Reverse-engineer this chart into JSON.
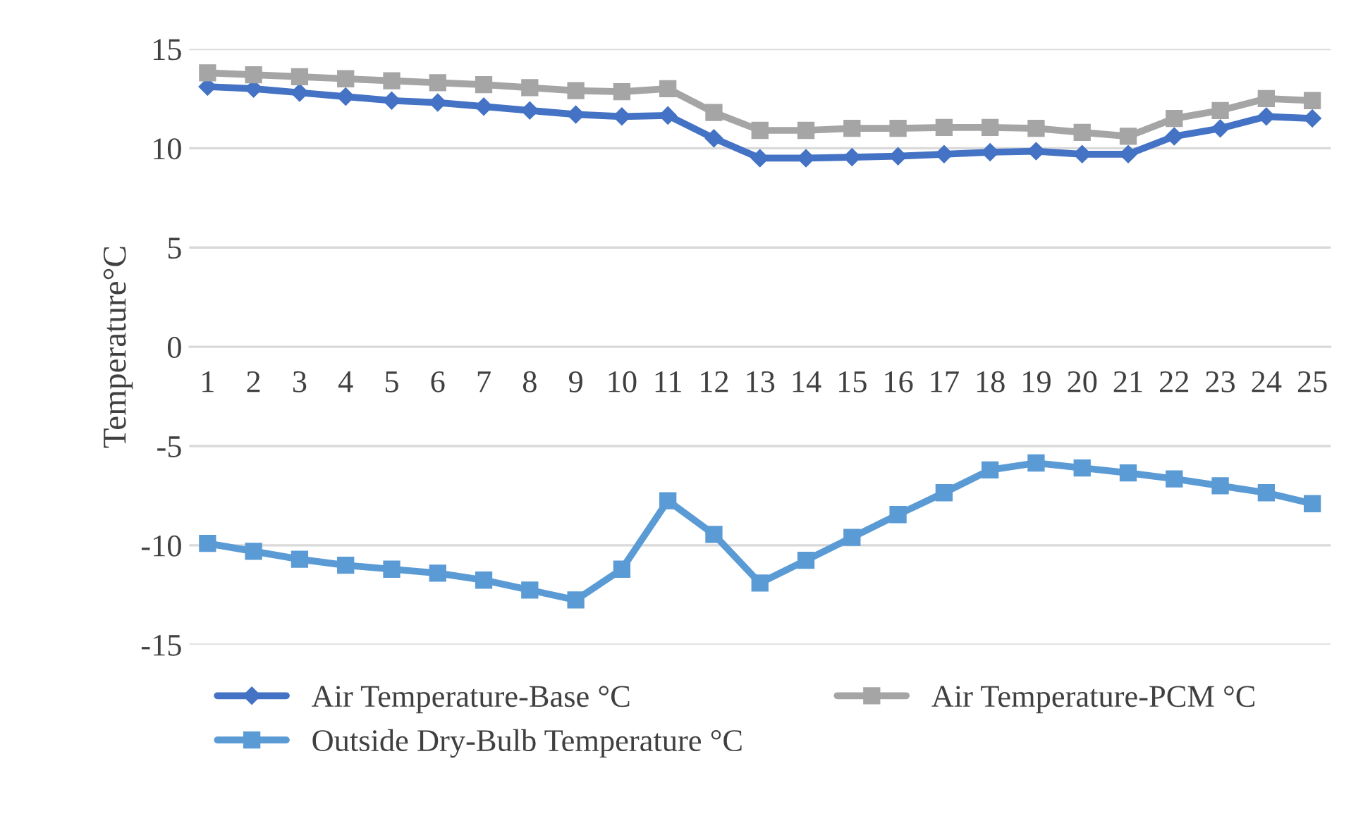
{
  "chart_data": {
    "type": "line",
    "ylabel": "Temperature°C",
    "categories": [
      "1",
      "2",
      "3",
      "4",
      "5",
      "6",
      "7",
      "8",
      "9",
      "10",
      "11",
      "12",
      "13",
      "14",
      "15",
      "16",
      "17",
      "18",
      "19",
      "20",
      "21",
      "22",
      "23",
      "24",
      "25"
    ],
    "series": [
      {
        "name": "Air Temperature-Base °C",
        "color": "#4472c4",
        "marker": "diamond",
        "values": [
          13.1,
          13.0,
          12.8,
          12.6,
          12.4,
          12.3,
          12.1,
          11.9,
          11.7,
          11.6,
          11.65,
          10.5,
          9.5,
          9.5,
          9.55,
          9.6,
          9.7,
          9.8,
          9.85,
          9.7,
          9.7,
          10.6,
          11.0,
          11.6,
          11.5
        ]
      },
      {
        "name": "Air Temperature-PCM °C",
        "color": "#a5a5a5",
        "marker": "square",
        "values": [
          13.8,
          13.7,
          13.6,
          13.5,
          13.4,
          13.3,
          13.2,
          13.05,
          12.9,
          12.85,
          13.0,
          11.8,
          10.9,
          10.9,
          11.0,
          11.0,
          11.05,
          11.05,
          11.0,
          10.8,
          10.6,
          11.5,
          11.9,
          12.5,
          12.4
        ]
      },
      {
        "name": "Outside Dry-Bulb Temperature °C",
        "color": "#5b9bd5",
        "marker": "square",
        "values": [
          -9.9,
          -10.3,
          -10.7,
          -11.0,
          -11.2,
          -11.4,
          -11.75,
          -12.25,
          -12.75,
          -11.2,
          -7.75,
          -9.45,
          -11.9,
          -10.75,
          -9.6,
          -8.45,
          -7.35,
          -6.2,
          -5.85,
          -6.1,
          -6.35,
          -6.65,
          -7.0,
          -7.35,
          -7.9
        ]
      }
    ],
    "ylim": [
      -15,
      15
    ],
    "yticks": [
      -15,
      -10,
      -5,
      0,
      5,
      10,
      15
    ],
    "grid": "y",
    "legend": "bottom",
    "line_style": "solid"
  }
}
